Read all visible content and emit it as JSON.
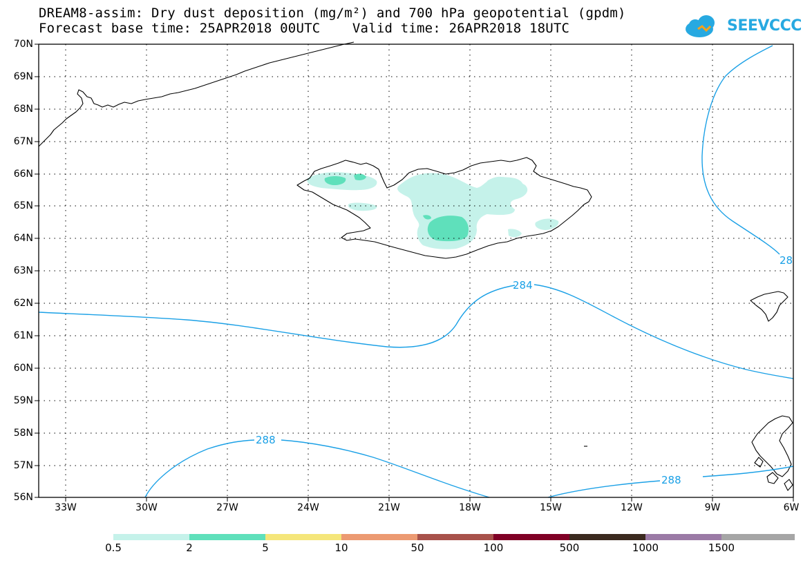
{
  "header": {
    "title_line1": "DREAM8-assim: Dry dust deposition (mg/m²) and 700 hPa geopotential (gpdm)",
    "title_line2": "Forecast base time: 25APR2018 00UTC    Valid time: 26APR2018 18UTC"
  },
  "logo": {
    "text": "SEEVCCC",
    "color": "#27a9e1",
    "icon": "cloud-icon"
  },
  "map": {
    "lon_range": [
      -34,
      -6
    ],
    "lat_range": [
      56,
      70
    ],
    "grid": true,
    "lat_labels": [
      "70N",
      "69N",
      "68N",
      "67N",
      "66N",
      "65N",
      "64N",
      "63N",
      "62N",
      "61N",
      "60N",
      "59N",
      "58N",
      "57N",
      "56N"
    ],
    "lon_labels": [
      "33W",
      "30W",
      "27W",
      "24W",
      "21W",
      "18W",
      "15W",
      "12W",
      "9W",
      "6W"
    ],
    "contour_color": "#1aa0e6",
    "contour_labels": [
      "284",
      "288",
      "288",
      "28"
    ],
    "regions": [
      "Greenland coast",
      "Iceland",
      "Faroe Islands",
      "Scotland coast"
    ]
  },
  "legend": {
    "labels": [
      "0.5",
      "2",
      "5",
      "10",
      "50",
      "100",
      "500",
      "1000",
      "1500"
    ],
    "colors": [
      "#c5f2ea",
      "#5fe0bb",
      "#f5e67a",
      "#ec9a72",
      "#a8524b",
      "#800026",
      "#3b2a1f",
      "#9b7aa6",
      "#a6a6a6"
    ]
  }
}
